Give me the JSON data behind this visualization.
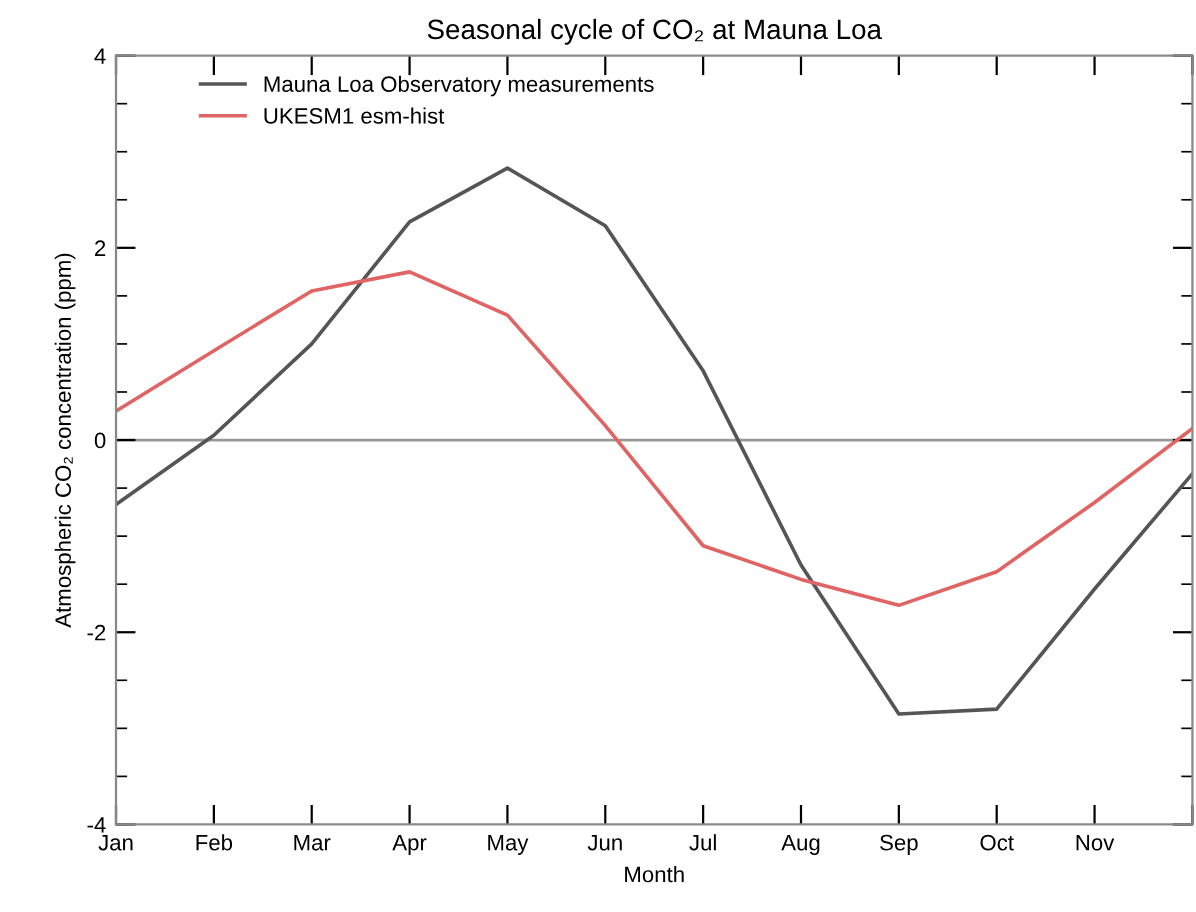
{
  "chart_data": {
    "type": "line",
    "title": "Seasonal cycle of CO₂ at Mauna Loa",
    "xlabel": "Month",
    "ylabel": "Atmospheric CO₂ concentration (ppm)",
    "categories": [
      "Jan",
      "Feb",
      "Mar",
      "Apr",
      "May",
      "Jun",
      "Jul",
      "Aug",
      "Sep",
      "Oct",
      "Nov",
      null
    ],
    "series": [
      {
        "name": "Mauna Loa Observatory measurements",
        "color": "#555555",
        "values": [
          -0.67,
          0.05,
          1.0,
          2.27,
          2.83,
          2.23,
          0.72,
          -1.3,
          -2.85,
          -2.8,
          -1.55,
          -0.35
        ]
      },
      {
        "name": "UKESM1 esm-hist",
        "color": "#e06464",
        "values": [
          0.3,
          0.93,
          1.55,
          1.75,
          1.3,
          0.15,
          -1.1,
          -1.45,
          -1.72,
          -1.37,
          -0.65,
          0.12
        ]
      }
    ],
    "ylim": [
      -4,
      4
    ],
    "yticks": [
      -4,
      -2,
      0,
      2,
      4
    ],
    "ref_lines": [
      {
        "axis": "y",
        "value": 0,
        "color": "#999999"
      }
    ],
    "legend": "top left",
    "grid": false,
    "marker": "none",
    "line_style": "solid"
  }
}
